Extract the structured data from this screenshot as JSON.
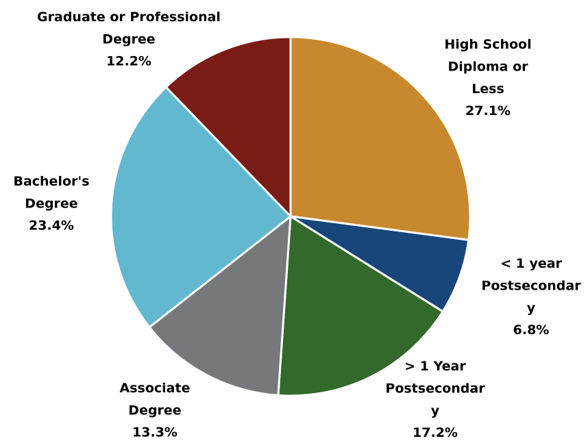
{
  "chart_data": {
    "type": "pie",
    "categories": [
      "High School\nDiploma or\nLess",
      "< 1 year\nPostsecondar\ny",
      "> 1 Year\nPostsecondar\ny",
      "Associate\nDegree",
      "Bachelor's\nDegree",
      "Graduate or Professional\nDegree"
    ],
    "values": [
      27.1,
      6.8,
      17.2,
      13.3,
      23.4,
      12.2
    ],
    "value_labels": [
      "27.1%",
      "6.8%",
      "17.2%",
      "13.3%",
      "23.4%",
      "12.2%"
    ],
    "colors": [
      "#C8892E",
      "#17467A",
      "#33692A",
      "#77787B",
      "#62B8CF",
      "#7A1C16"
    ]
  }
}
